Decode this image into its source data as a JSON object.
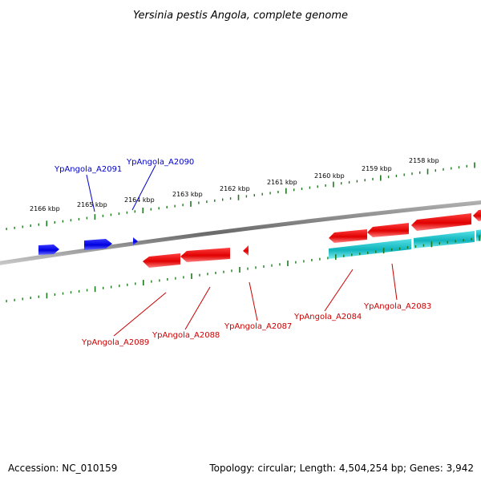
{
  "title": "Yersinia pestis Angola, complete genome",
  "accession": "Accession: NC_010159",
  "summary": "Topology: circular; Length: 4,504,254 bp; Genes: 3,942",
  "colors": {
    "forward_gene": "#0000e8",
    "reverse_gene": "#ee0000",
    "reverse_rna": "#11c0c8",
    "ticks": "#1f7a1f",
    "backbone": "#888888",
    "forward_label": "#0000cc",
    "reverse_label": "#cc0000"
  },
  "scale_labels": [
    "2166 kbp",
    "2165 kbp",
    "2164 kbp",
    "2163 kbp",
    "2162 kbp",
    "2161 kbp",
    "2160 kbp",
    "2159 kbp",
    "2158 kbp"
  ],
  "gene_labels": {
    "forward": [
      "YpAngola_A2091",
      "YpAngola_A2090"
    ],
    "reverse": [
      "YpAngola_A2089",
      "YpAngola_A2088",
      "YpAngola_A2087",
      "YpAngola_A2084",
      "YpAngola_A2083"
    ]
  }
}
